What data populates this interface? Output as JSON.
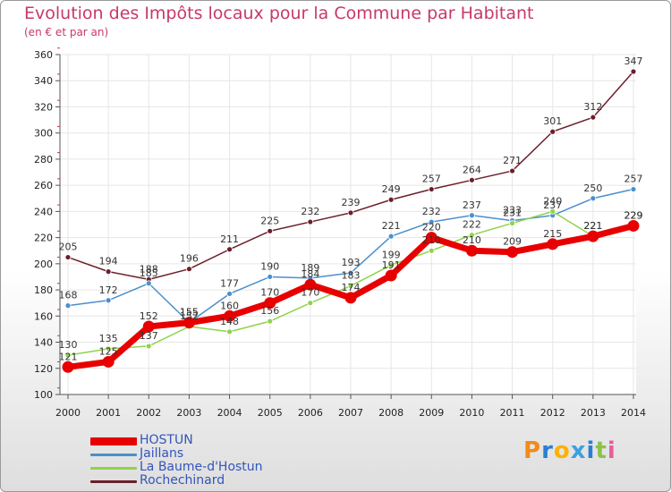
{
  "chart_data": {
    "type": "line",
    "title": "Evolution des Impôts locaux pour la Commune par Habitant",
    "subtitle": "(en € et par an)",
    "xlabel": "",
    "ylabel": "",
    "ylim": [
      100,
      360
    ],
    "yticks": [
      100,
      120,
      140,
      160,
      180,
      200,
      220,
      240,
      260,
      280,
      300,
      320,
      340,
      360
    ],
    "grid": true,
    "legend_position": "bottom-left",
    "x": [
      2000,
      2001,
      2002,
      2003,
      2004,
      2005,
      2006,
      2007,
      2008,
      2009,
      2010,
      2011,
      2012,
      2013,
      2014
    ],
    "series": [
      {
        "name": "Rochechinard",
        "color": "#6b1f2a",
        "values": [
          205,
          194,
          188,
          196,
          211,
          225,
          232,
          239,
          249,
          257,
          264,
          271,
          301,
          312,
          347
        ]
      },
      {
        "name": "Jaillans",
        "color": "#4a8fcc",
        "values": [
          168,
          172,
          185,
          155,
          177,
          190,
          189,
          193,
          221,
          232,
          237,
          233,
          237,
          250,
          257
        ]
      },
      {
        "name": "La Baume-d'Hostun",
        "color": "#8fd34a",
        "values": [
          130,
          135,
          137,
          152,
          148,
          156,
          170,
          183,
          199,
          210,
          222,
          231,
          240,
          221,
          229
        ]
      },
      {
        "name": "HOSTUN",
        "color": "#e80000",
        "values": [
          121,
          125,
          152,
          155,
          160,
          170,
          184,
          174,
          191,
          220,
          210,
          209,
          215,
          221,
          229
        ]
      }
    ],
    "legend_order": [
      "HOSTUN",
      "Jaillans",
      "La Baume-d'Hostun",
      "Rochechinard"
    ]
  },
  "logo_text": "Proxiti",
  "logo_colors": [
    "#f28a1c",
    "#2a7fd4",
    "#ffb000",
    "#3ca0e0",
    "#2a7fd4",
    "#8bc34a",
    "#e85d9b"
  ]
}
